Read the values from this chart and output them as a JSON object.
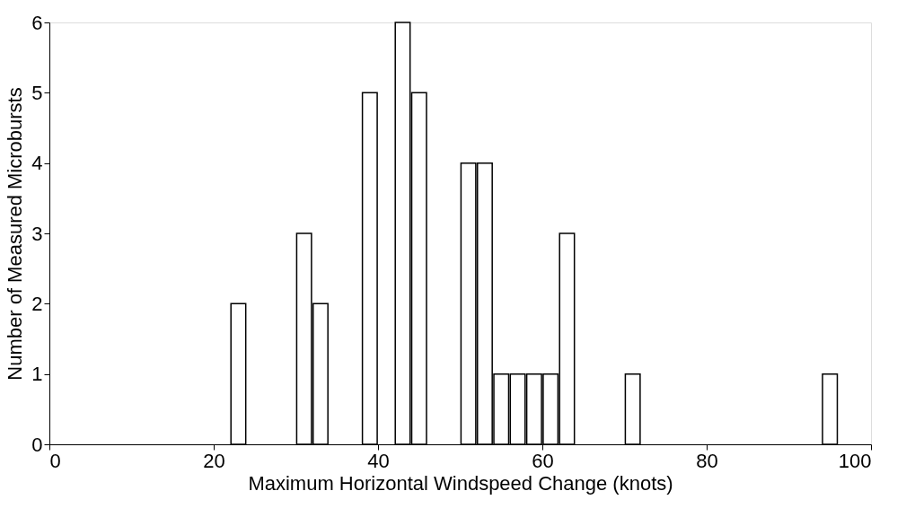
{
  "chart_data": {
    "type": "bar",
    "xlabel": "Maximum Horizontal Windspeed Change (knots)",
    "ylabel": "Number of Measured Microbursts",
    "x": [
      23,
      31,
      33,
      39,
      43,
      45,
      51,
      53,
      55,
      57,
      59,
      61,
      63,
      71,
      95
    ],
    "values": [
      2,
      3,
      2,
      5,
      6,
      5,
      4,
      4,
      1,
      1,
      1,
      1,
      3,
      1,
      1
    ],
    "color": "#ffffff",
    "xlim": [
      0,
      100
    ],
    "xticks": [
      0,
      20,
      40,
      60,
      80,
      100
    ],
    "ylim": [
      0,
      6
    ],
    "yticks": [
      0,
      1,
      2,
      3,
      4,
      5,
      6
    ],
    "grid": false
  }
}
